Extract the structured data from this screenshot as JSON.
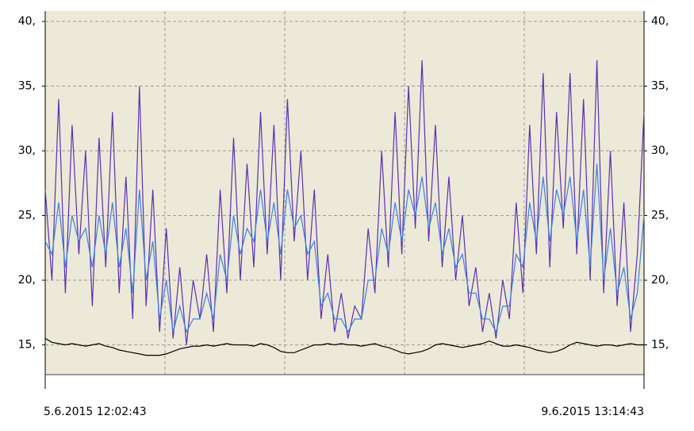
{
  "chart_data": {
    "type": "line",
    "x_labels": [
      "5.6.2015 12:02:43",
      "9.6.2015 13:14:43"
    ],
    "ylim": [
      12.7,
      40.8
    ],
    "yticks": [
      {
        "value": 15,
        "label": "15,"
      },
      {
        "value": 20,
        "label": "20,"
      },
      {
        "value": 25,
        "label": "25,"
      },
      {
        "value": 30,
        "label": "30,"
      },
      {
        "value": 35,
        "label": "35,"
      },
      {
        "value": 40,
        "label": "40,"
      }
    ],
    "grid": true,
    "series": [
      {
        "color": "#5b30b2",
        "values": [
          27,
          20,
          34,
          19,
          32,
          22,
          30,
          18,
          31,
          21,
          33,
          19,
          28,
          17,
          35,
          18,
          27,
          16,
          24,
          15.5,
          21,
          15,
          20,
          17,
          22,
          16,
          27,
          19,
          31,
          20,
          29,
          21,
          33,
          22,
          32,
          20,
          34,
          23,
          30,
          20,
          27,
          17,
          22,
          16,
          19,
          15.5,
          18,
          17,
          24,
          19,
          30,
          21,
          33,
          22,
          35,
          24,
          37,
          23,
          32,
          21,
          28,
          20,
          25,
          18,
          21,
          16,
          19,
          15.5,
          20,
          17,
          26,
          19,
          32,
          22,
          36,
          21,
          33,
          24,
          36,
          22,
          34,
          20,
          37,
          19,
          30,
          18,
          26,
          16,
          22,
          33
        ]
      },
      {
        "color": "#3a82e4",
        "values": [
          23,
          22,
          26,
          21,
          25,
          23,
          24,
          21,
          25,
          22,
          26,
          21,
          24,
          19,
          27,
          20,
          23,
          17,
          20,
          16,
          18,
          16,
          17,
          17,
          19,
          17,
          22,
          20,
          25,
          22,
          24,
          23,
          27,
          23,
          26,
          22,
          27,
          24,
          25,
          22,
          23,
          18,
          19,
          17,
          17,
          16,
          17,
          17,
          20,
          20,
          24,
          22,
          26,
          23,
          27,
          25,
          28,
          24,
          26,
          22,
          24,
          21,
          22,
          19,
          19,
          17,
          17,
          16,
          18,
          18,
          22,
          21,
          26,
          23,
          28,
          23,
          27,
          25,
          28,
          23,
          27,
          21,
          29,
          20,
          24,
          19,
          21,
          17,
          19,
          25
        ]
      },
      {
        "color": "#000000",
        "values": [
          15.5,
          15.2,
          15.1,
          15.0,
          15.1,
          15.0,
          14.9,
          15.0,
          15.1,
          14.9,
          14.8,
          14.6,
          14.5,
          14.4,
          14.3,
          14.2,
          14.2,
          14.2,
          14.3,
          14.5,
          14.7,
          14.8,
          14.9,
          14.9,
          15.0,
          14.9,
          15.0,
          15.1,
          15.0,
          15.0,
          15.0,
          14.9,
          15.1,
          15.0,
          14.8,
          14.5,
          14.4,
          14.4,
          14.6,
          14.8,
          15.0,
          15.0,
          15.1,
          15.0,
          15.1,
          15.0,
          15.0,
          14.9,
          15.0,
          15.1,
          14.9,
          14.8,
          14.6,
          14.4,
          14.3,
          14.4,
          14.5,
          14.7,
          15.0,
          15.1,
          15.0,
          14.9,
          14.8,
          14.9,
          15.0,
          15.1,
          15.3,
          15.1,
          14.9,
          14.9,
          15.0,
          14.9,
          14.8,
          14.6,
          14.5,
          14.4,
          14.5,
          14.7,
          15.0,
          15.2,
          15.1,
          15.0,
          14.9,
          15.0,
          15.0,
          14.9,
          15.0,
          15.1,
          15.0,
          15.0
        ]
      }
    ]
  }
}
